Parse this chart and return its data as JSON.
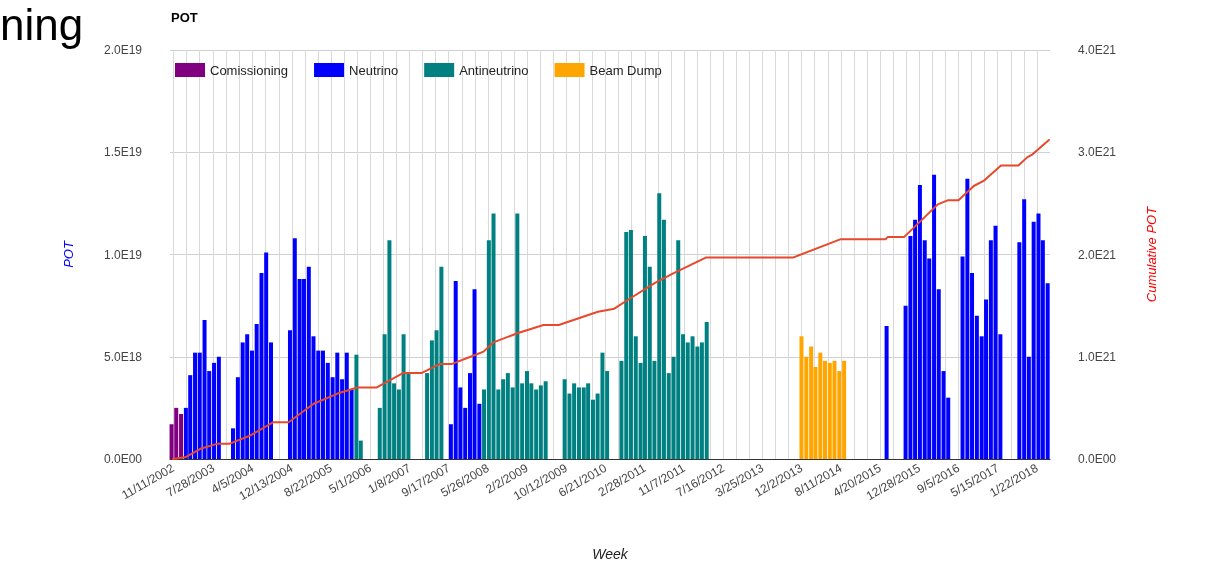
{
  "chart_data": {
    "type": "bar",
    "title": "POT",
    "xlabel": "Week",
    "ylabel": "POT",
    "y2label": "Cumulative POT",
    "annotations": [
      "ning"
    ],
    "xlim": [
      "2002-10-22",
      "2018-04-16"
    ],
    "xticks": [
      {
        "value": "2002-11-11",
        "label": "11/11/2002"
      },
      {
        "value": "2003-02-03",
        "label": null
      },
      {
        "value": "2003-04-28",
        "label": null
      },
      {
        "value": "2003-07-28",
        "label": "7/28/2003"
      },
      {
        "value": "2003-10-20",
        "label": null
      },
      {
        "value": "2004-01-12",
        "label": null
      },
      {
        "value": "2004-04-05",
        "label": "4/5/2004"
      },
      {
        "value": "2004-06-28",
        "label": null
      },
      {
        "value": "2004-09-20",
        "label": null
      },
      {
        "value": "2004-12-13",
        "label": "12/13/2004"
      },
      {
        "value": "2005-03-07",
        "label": null
      },
      {
        "value": "2005-05-30",
        "label": null
      },
      {
        "value": "2005-08-22",
        "label": "8/22/2005"
      },
      {
        "value": "2005-11-14",
        "label": null
      },
      {
        "value": "2006-02-06",
        "label": null
      },
      {
        "value": "2006-05-01",
        "label": "5/1/2006"
      },
      {
        "value": "2006-07-24",
        "label": null
      },
      {
        "value": "2006-10-16",
        "label": null
      },
      {
        "value": "2007-01-08",
        "label": "1/8/2007"
      },
      {
        "value": "2007-04-02",
        "label": null
      },
      {
        "value": "2007-06-25",
        "label": null
      },
      {
        "value": "2007-09-17",
        "label": "9/17/2007"
      },
      {
        "value": "2007-12-10",
        "label": null
      },
      {
        "value": "2008-03-03",
        "label": null
      },
      {
        "value": "2008-05-26",
        "label": "5/26/2008"
      },
      {
        "value": "2008-08-18",
        "label": null
      },
      {
        "value": "2008-11-10",
        "label": null
      },
      {
        "value": "2009-02-02",
        "label": "2/2/2009"
      },
      {
        "value": "2009-04-27",
        "label": null
      },
      {
        "value": "2009-07-20",
        "label": null
      },
      {
        "value": "2009-10-12",
        "label": "10/12/2009"
      },
      {
        "value": "2010-01-04",
        "label": null
      },
      {
        "value": "2010-03-29",
        "label": null
      },
      {
        "value": "2010-06-21",
        "label": "6/21/2010"
      },
      {
        "value": "2010-09-13",
        "label": null
      },
      {
        "value": "2010-12-06",
        "label": null
      },
      {
        "value": "2011-02-28",
        "label": "2/28/2011"
      },
      {
        "value": "2011-05-23",
        "label": null
      },
      {
        "value": "2011-08-15",
        "label": null
      },
      {
        "value": "2011-11-07",
        "label": "11/7/2011"
      },
      {
        "value": "2012-01-30",
        "label": null
      },
      {
        "value": "2012-04-23",
        "label": null
      },
      {
        "value": "2012-07-16",
        "label": "7/16/2012"
      },
      {
        "value": "2012-10-08",
        "label": null
      },
      {
        "value": "2012-12-31",
        "label": null
      },
      {
        "value": "2013-03-25",
        "label": "3/25/2013"
      },
      {
        "value": "2013-06-17",
        "label": null
      },
      {
        "value": "2013-09-09",
        "label": null
      },
      {
        "value": "2013-12-02",
        "label": "12/2/2013"
      },
      {
        "value": "2014-02-24",
        "label": null
      },
      {
        "value": "2014-05-19",
        "label": null
      },
      {
        "value": "2014-08-11",
        "label": "8/11/2014"
      },
      {
        "value": "2014-11-03",
        "label": null
      },
      {
        "value": "2015-01-26",
        "label": null
      },
      {
        "value": "2015-04-20",
        "label": "4/20/2015"
      },
      {
        "value": "2015-07-13",
        "label": null
      },
      {
        "value": "2015-10-05",
        "label": null
      },
      {
        "value": "2015-12-28",
        "label": "12/28/2015"
      },
      {
        "value": "2016-03-21",
        "label": null
      },
      {
        "value": "2016-06-13",
        "label": null
      },
      {
        "value": "2016-09-05",
        "label": "9/5/2016"
      },
      {
        "value": "2016-11-28",
        "label": null
      },
      {
        "value": "2017-02-20",
        "label": null
      },
      {
        "value": "2017-05-15",
        "label": "5/15/2017"
      },
      {
        "value": "2017-08-07",
        "label": null
      },
      {
        "value": "2017-10-30",
        "label": null
      },
      {
        "value": "2018-01-22",
        "label": "1/22/2018"
      }
    ],
    "ylim": [
      0,
      2e+19
    ],
    "yticks": [
      {
        "value": 0,
        "label": "0.0E00"
      },
      {
        "value": 5e+18,
        "label": "5.0E18"
      },
      {
        "value": 1e+19,
        "label": "1.0E19"
      },
      {
        "value": 1.5e+19,
        "label": "1.5E19"
      },
      {
        "value": 2e+19,
        "label": "2.0E19"
      }
    ],
    "y2lim": [
      0,
      4e+21
    ],
    "y2ticks": [
      {
        "value": 0,
        "label": "0.0E00"
      },
      {
        "value": 1e+21,
        "label": "1.0E21"
      },
      {
        "value": 2e+21,
        "label": "2.0E21"
      },
      {
        "value": 3e+21,
        "label": "3.0E21"
      },
      {
        "value": 4e+21,
        "label": "4.0E21"
      }
    ],
    "grid": true,
    "legend": "top left",
    "series": [
      {
        "name": "Comissioning",
        "color": "#800080",
        "x": [
          "2002-11",
          "2002-12",
          "2003-01"
        ],
        "values": [
          1.7e+18,
          2.5e+18,
          2.2e+18
        ]
      },
      {
        "name": "Neutrino",
        "color": "#0000ff",
        "x": [
          "2003-02",
          "2003-03",
          "2003-04",
          "2003-05",
          "2003-06",
          "2003-07",
          "2003-08",
          "2003-09",
          "2003-12",
          "2004-01",
          "2004-02",
          "2004-03",
          "2004-04",
          "2004-05",
          "2004-06",
          "2004-07",
          "2004-08",
          "2004-12",
          "2005-01",
          "2005-02",
          "2005-03",
          "2005-04",
          "2005-05",
          "2005-06",
          "2005-07",
          "2005-08",
          "2005-09",
          "2005-10",
          "2005-11",
          "2005-12",
          "2006-01",
          "2007-10",
          "2007-11",
          "2007-12",
          "2008-01",
          "2008-02",
          "2008-03",
          "2008-04",
          "2015-06",
          "2015-10",
          "2015-11",
          "2015-12",
          "2016-01",
          "2016-02",
          "2016-03",
          "2016-04",
          "2016-05",
          "2016-06",
          "2016-07",
          "2016-10",
          "2016-11",
          "2016-12",
          "2017-01",
          "2017-02",
          "2017-03",
          "2017-04",
          "2017-05",
          "2017-06",
          "2017-10",
          "2017-11",
          "2017-12",
          "2018-01",
          "2018-02",
          "2018-03",
          "2018-04"
        ],
        "values": [
          2.5e+18,
          4.1e+18,
          5.2e+18,
          5.2e+18,
          6.8e+18,
          4.3e+18,
          4.7e+18,
          5e+18,
          1.5e+18,
          4e+18,
          5.7e+18,
          6.1e+18,
          5.3e+18,
          6.6e+18,
          9.1e+18,
          1.01e+19,
          5.7e+18,
          6.3e+18,
          1.08e+19,
          8.8e+18,
          8.8e+18,
          9.4e+18,
          6e+18,
          5.3e+18,
          5.3e+18,
          4.7e+18,
          4e+18,
          5.2e+18,
          3.9e+18,
          5.2e+18,
          3.4e+18,
          1.7e+18,
          8.7e+18,
          3.5e+18,
          2.5e+18,
          4.2e+18,
          8.3e+18,
          2.7e+18,
          6.5e+18,
          7.5e+18,
          1.09e+19,
          1.17e+19,
          1.34e+19,
          1.07e+19,
          9.8e+18,
          1.39e+19,
          8.3e+18,
          4.3e+18,
          3e+18,
          9.9e+18,
          1.37e+19,
          9.1e+18,
          7e+18,
          6e+18,
          7.8e+18,
          1.07e+19,
          1.14e+19,
          6.1e+18,
          1.06e+19,
          1.27e+19,
          5e+18,
          1.16e+19,
          1.2e+19,
          1.07e+19,
          8.6e+18
        ]
      },
      {
        "name": "Antineutrino",
        "color": "#008080",
        "x": [
          "2006-02",
          "2006-03",
          "2006-07",
          "2006-08",
          "2006-09",
          "2006-10",
          "2006-11",
          "2006-12",
          "2007-01",
          "2007-05",
          "2007-06",
          "2007-07",
          "2007-08",
          "2008-05",
          "2008-06",
          "2008-07",
          "2008-08",
          "2008-09",
          "2008-10",
          "2008-11",
          "2008-12",
          "2009-01",
          "2009-02",
          "2009-03",
          "2009-04",
          "2009-05",
          "2009-06",
          "2009-10",
          "2009-11",
          "2009-12",
          "2010-01",
          "2010-02",
          "2010-03",
          "2010-04",
          "2010-05",
          "2010-06",
          "2010-07",
          "2010-10",
          "2010-11",
          "2010-12",
          "2011-01",
          "2011-02",
          "2011-03",
          "2011-04",
          "2011-05",
          "2011-06",
          "2011-07",
          "2011-08",
          "2011-09",
          "2011-10",
          "2011-11",
          "2011-12",
          "2012-01",
          "2012-02",
          "2012-03",
          "2012-04"
        ],
        "values": [
          5.1e+18,
          9e+17,
          2.5e+18,
          6.1e+18,
          1.07e+19,
          3.7e+18,
          3.4e+18,
          6.1e+18,
          4.2e+18,
          4.2e+18,
          5.8e+18,
          6.3e+18,
          9.4e+18,
          3.4e+18,
          1.07e+19,
          1.2e+19,
          3.4e+18,
          3.9e+18,
          4.2e+18,
          3.5e+18,
          1.2e+19,
          3.7e+18,
          4.3e+18,
          3.7e+18,
          3.4e+18,
          3.6e+18,
          3.8e+18,
          3.9e+18,
          3.2e+18,
          3.7e+18,
          3.5e+18,
          3.5e+18,
          3.7e+18,
          2.9e+18,
          3.2e+18,
          5.2e+18,
          4.3e+18,
          4.8e+18,
          1.11e+19,
          1.12e+19,
          6e+18,
          4.7e+18,
          1.09e+19,
          9.4e+18,
          4.8e+18,
          1.3e+19,
          1.17e+19,
          4.2e+18,
          5e+18,
          1.07e+19,
          6.1e+18,
          5.7e+18,
          6e+18,
          5.5e+18,
          5.7e+18,
          6.7e+18
        ]
      },
      {
        "name": "Beam Dump",
        "color": "#ffa500",
        "x": [
          "2013-12",
          "2014-01",
          "2014-02",
          "2014-03",
          "2014-04",
          "2014-05",
          "2014-06",
          "2014-07",
          "2014-08",
          "2014-09"
        ],
        "values": [
          6e+18,
          5e+18,
          5.5e+18,
          4.5e+18,
          5.2e+18,
          4.8e+18,
          4.7e+18,
          4.8e+18,
          4.3e+18,
          4.8e+18
        ]
      },
      {
        "type": "line",
        "axis": "y2",
        "color": "#e8482c",
        "x": [
          "2002-11-11",
          "2003-02-03",
          "2003-05-05",
          "2003-08-25",
          "2003-11-10",
          "2004-03-22",
          "2004-08-16",
          "2004-11-22",
          "2005-05-02",
          "2005-10-03",
          "2006-02-06",
          "2006-06-12",
          "2006-11-27",
          "2007-03-26",
          "2007-07-23",
          "2007-10-08",
          "2008-02-04",
          "2008-04-28",
          "2008-06-30",
          "2008-12-01",
          "2009-05-18",
          "2009-08-24",
          "2010-05-03",
          "2010-08-16",
          "2010-11-15",
          "2011-05-02",
          "2011-09-05",
          "2012-03-26",
          "2013-10-07",
          "2014-08-11",
          "2015-05-25",
          "2015-06-08",
          "2015-09-21",
          "2016-04-25",
          "2016-06-27",
          "2016-09-05",
          "2016-12-12",
          "2017-02-13",
          "2017-06-05",
          "2017-09-25",
          "2017-11-20",
          "2017-12-25",
          "2018-04-09"
        ],
        "values": [
          0,
          2e+19,
          1e+20,
          1.5e+20,
          1.5e+20,
          2.3e+20,
          3.6e+20,
          3.6e+20,
          5.4e+20,
          6.4e+20,
          7e+20,
          7e+20,
          8.4e+20,
          8.4e+20,
          9.3e+20,
          9.3e+20,
          1e+21,
          1.05e+21,
          1.14e+21,
          1.23e+21,
          1.31e+21,
          1.31e+21,
          1.44e+21,
          1.47e+21,
          1.56e+21,
          1.72e+21,
          1.82e+21,
          1.97e+21,
          1.97e+21,
          2.15e+21,
          2.15e+21,
          2.17e+21,
          2.17e+21,
          2.49e+21,
          2.53e+21,
          2.53e+21,
          2.67e+21,
          2.72e+21,
          2.87e+21,
          2.87e+21,
          2.95e+21,
          2.98e+21,
          3.12e+21
        ]
      }
    ]
  }
}
